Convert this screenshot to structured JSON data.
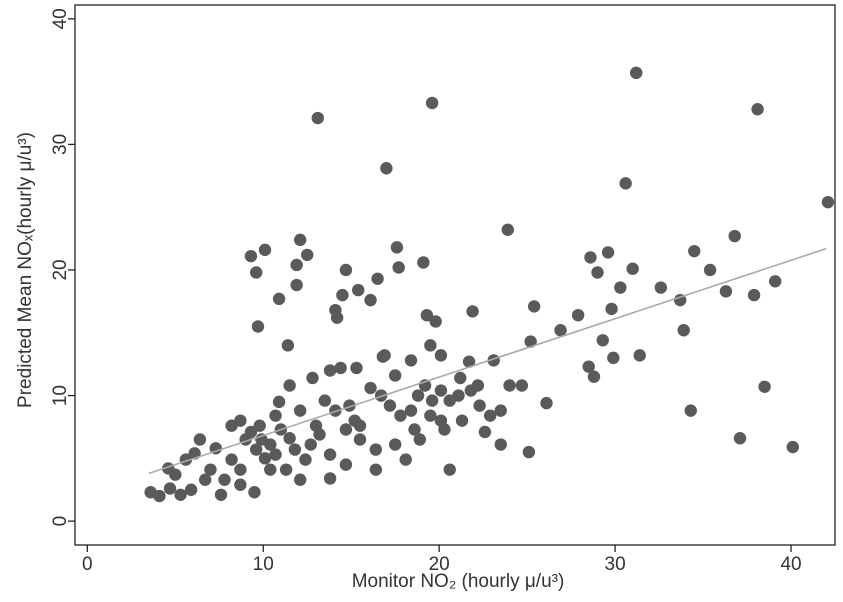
{
  "chart_data": {
    "type": "scatter",
    "xlabel": "Monitor NO₂ (hourly μ/u³)",
    "ylabel": "Predicted Mean NOₓ(hourly μ/u³)",
    "xlim": [
      -0.7,
      42.5
    ],
    "ylim": [
      -1.9,
      41.1
    ],
    "xticks": [
      0,
      10,
      20,
      30,
      40
    ],
    "yticks": [
      0,
      10,
      20,
      30,
      40
    ],
    "grid": false,
    "color": "#5a5a5a",
    "x": [
      13.1,
      19.6,
      17.0,
      31.2,
      38.1,
      42.1,
      30.6,
      23.9,
      36.8,
      34.5,
      35.4,
      36.3,
      37.9,
      39.1,
      33.9,
      34.3,
      37.1,
      40.1,
      38.5,
      32.6,
      33.7,
      29.6,
      28.6,
      29.0,
      31.0,
      30.3,
      29.8,
      31.4,
      29.9,
      28.8,
      28.5,
      29.3,
      27.9,
      26.9,
      25.4,
      26.1,
      25.1,
      23.5,
      20.6,
      22.6,
      9.3,
      10.1,
      9.6,
      9.7,
      12.1,
      12.5,
      11.9,
      11.9,
      10.9,
      11.4,
      14.7,
      14.5,
      14.1,
      14.2,
      15.4,
      16.1,
      16.5,
      17.6,
      17.7,
      19.1,
      19.3,
      19.8,
      19.5,
      20.1,
      21.9,
      21.7,
      23.1,
      25.2,
      16.9,
      16.8,
      13.8,
      15.3,
      14.4,
      11.5,
      12.8,
      16.1,
      17.5,
      18.4,
      21.2,
      22.2,
      24.0,
      24.7,
      23.5,
      21.3,
      20.3,
      18.9,
      18.1,
      17.5,
      16.4,
      15.5,
      14.7,
      13.8,
      12.1,
      9.5,
      3.6,
      4.1,
      4.7,
      5.9,
      4.6,
      6.1,
      7.0,
      7.8,
      8.7,
      8.2,
      9.0,
      9.3,
      8.2,
      8.7,
      9.6,
      9.9,
      10.4,
      10.7,
      10.1,
      11.0,
      11.5,
      11.8,
      12.4,
      12.7,
      13.2,
      13.0,
      12.1,
      10.9,
      10.7,
      9.8,
      13.5,
      14.1,
      14.9,
      15.2,
      14.7,
      15.5,
      16.7,
      17.2,
      17.8,
      18.4,
      18.8,
      19.2,
      19.6,
      20.1,
      20.6,
      21.1,
      21.8,
      22.3,
      22.9,
      19.5,
      20.1,
      18.6,
      6.4,
      5.6,
      5.0,
      7.3,
      6.7,
      7.6,
      5.3,
      10.4,
      11.3,
      8.7,
      13.8,
      16.4
    ],
    "y": [
      32.1,
      33.3,
      28.1,
      35.7,
      32.8,
      25.4,
      26.9,
      23.2,
      22.7,
      21.5,
      20.0,
      18.3,
      18.0,
      19.1,
      15.2,
      8.8,
      6.6,
      5.9,
      10.7,
      18.6,
      17.6,
      21.4,
      21.0,
      19.8,
      20.1,
      18.6,
      16.9,
      13.2,
      13.0,
      11.5,
      12.3,
      14.4,
      16.4,
      15.2,
      17.1,
      9.4,
      5.5,
      6.1,
      4.1,
      7.1,
      21.1,
      21.6,
      19.8,
      15.5,
      22.4,
      21.2,
      20.4,
      18.8,
      17.7,
      14.0,
      20.0,
      18.0,
      16.8,
      16.2,
      18.4,
      17.6,
      19.3,
      21.8,
      20.2,
      20.6,
      16.4,
      15.9,
      14.0,
      13.2,
      16.7,
      12.7,
      12.8,
      14.3,
      13.2,
      13.1,
      12.0,
      12.2,
      12.2,
      10.8,
      11.4,
      10.6,
      11.6,
      12.8,
      11.4,
      10.8,
      10.8,
      10.8,
      8.8,
      8.0,
      7.3,
      6.5,
      4.9,
      6.1,
      5.7,
      6.5,
      4.5,
      3.4,
      3.3,
      2.3,
      2.3,
      2.0,
      2.6,
      2.5,
      4.2,
      5.4,
      4.1,
      3.3,
      4.1,
      4.9,
      6.5,
      7.1,
      7.6,
      8.0,
      5.7,
      6.5,
      6.1,
      5.3,
      5.0,
      7.3,
      6.6,
      5.7,
      4.9,
      6.1,
      6.9,
      7.6,
      8.8,
      9.5,
      8.4,
      7.6,
      9.6,
      8.8,
      9.2,
      8.0,
      7.3,
      7.6,
      10.0,
      9.2,
      8.4,
      8.8,
      10.0,
      10.8,
      9.6,
      10.4,
      9.6,
      10.0,
      10.4,
      9.2,
      8.4,
      8.4,
      8.0,
      7.3,
      6.5,
      4.9,
      3.7,
      5.8,
      3.3,
      2.1,
      2.1,
      4.1,
      4.1,
      2.9,
      5.3,
      4.1
    ],
    "fit_line": {
      "x": [
        3.5,
        42
      ],
      "y": [
        3.8,
        21.7
      ],
      "color": "#aaaaaa"
    }
  }
}
